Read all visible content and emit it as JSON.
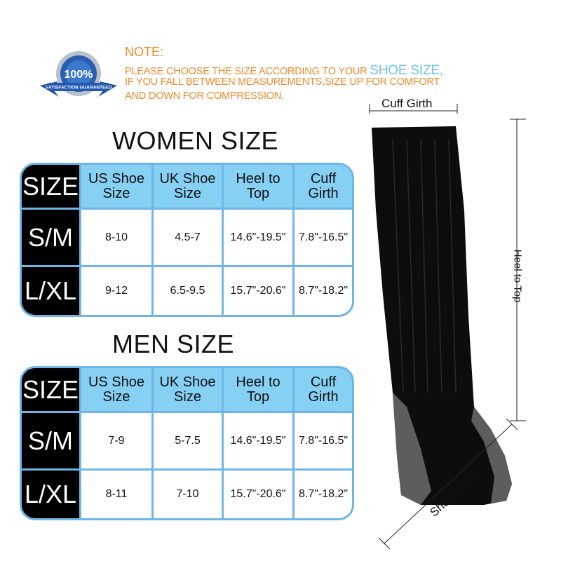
{
  "badge": {
    "text": "100%",
    "ring_text": "SATISFACTION GUARANTEED"
  },
  "note": {
    "title": "NOTE:",
    "line1": "PLEASE CHOOSE THE SIZE ACCORDING TO YOUR ",
    "highlight": "SHOE SIZE,",
    "line2": "IF YOU FALL BETWEEN MEASUREMENTS,SIZE UP FOR COMFORT",
    "line3": "AND DOWN FOR COMPRESSION."
  },
  "colors": {
    "orange": "#f0892a",
    "header_blue": "#86d0f4",
    "border_blue": "#6fb6e6",
    "highlight": "#6ec3ec"
  },
  "women": {
    "title": "WOMEN SIZE",
    "headers": [
      "SIZE",
      "US Shoe Size",
      "UK Shoe Size",
      "Heel to Top",
      "Cuff Girth"
    ],
    "rows": [
      [
        "S/M",
        "8-10",
        "4.5-7",
        "14.6\"-19.5\"",
        "7.8\"-16.5\""
      ],
      [
        "L/XL",
        "9-12",
        "6.5-9.5",
        "15.7\"-20.6\"",
        "8.7\"-18.2\""
      ]
    ]
  },
  "men": {
    "title": "MEN SIZE",
    "headers": [
      "SIZE",
      "US Shoe Size",
      "UK Shoe Size",
      "Heel to Top",
      "Cuff Girth"
    ],
    "rows": [
      [
        "S/M",
        "7-9",
        "5-7.5",
        "14.6\"-19.5\"",
        "7.8\"-16.5\""
      ],
      [
        "L/XL",
        "8-11",
        "7-10",
        "15.7\"-20.6\"",
        "8.7\"-18.2\""
      ]
    ]
  },
  "diagram": {
    "cuff_girth": "Cuff Girth",
    "heel_to_top": "Heel to Top",
    "shoes_size": "Shoes Size"
  }
}
